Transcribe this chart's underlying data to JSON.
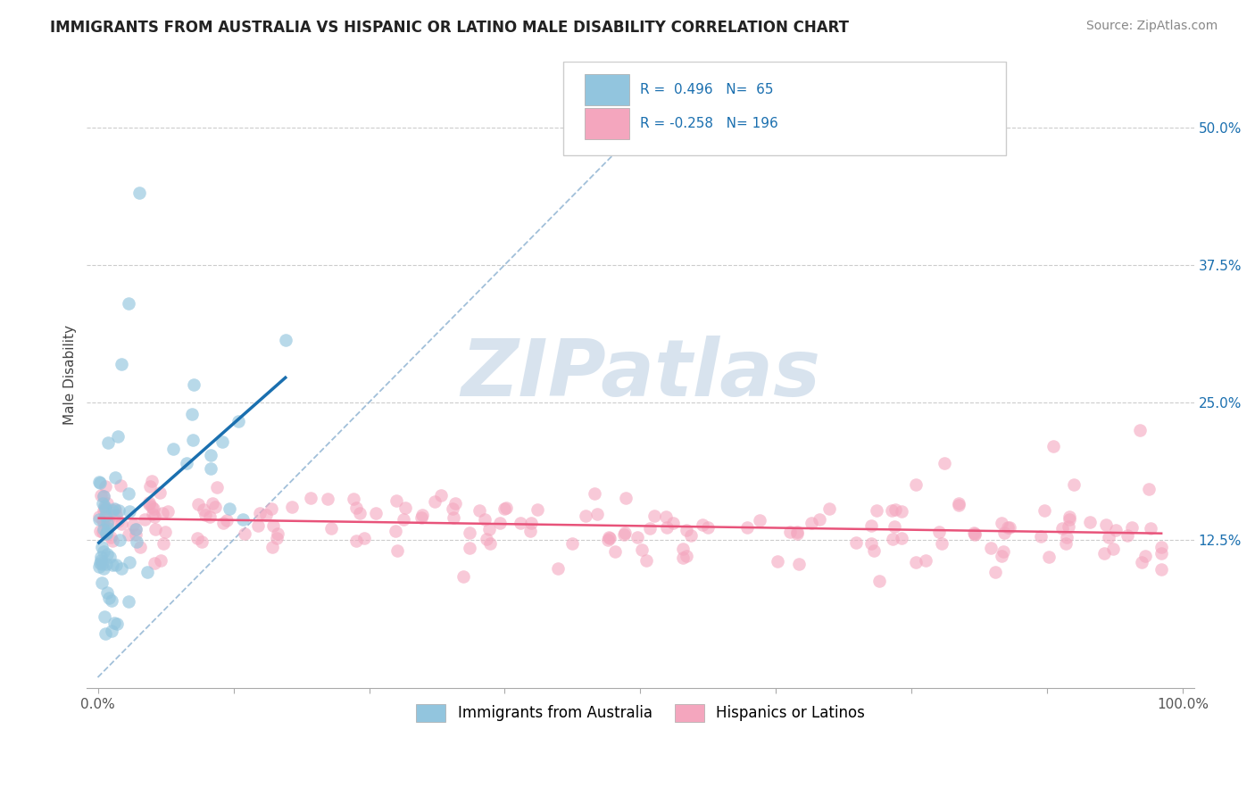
{
  "title": "IMMIGRANTS FROM AUSTRALIA VS HISPANIC OR LATINO MALE DISABILITY CORRELATION CHART",
  "source": "Source: ZipAtlas.com",
  "ylabel": "Male Disability",
  "y_ticks": [
    "12.5%",
    "25.0%",
    "37.5%",
    "50.0%"
  ],
  "y_tick_vals": [
    0.125,
    0.25,
    0.375,
    0.5
  ],
  "xlim": [
    -0.01,
    1.01
  ],
  "ylim": [
    -0.01,
    0.56
  ],
  "legend_label_blue": "Immigrants from Australia",
  "legend_label_pink": "Hispanics or Latinos",
  "r_blue": "0.496",
  "n_blue": "65",
  "r_pink": "-0.258",
  "n_pink": "196",
  "blue_color": "#92c5de",
  "pink_color": "#f4a6be",
  "blue_line_color": "#1a6faf",
  "pink_line_color": "#e8537a",
  "diag_color": "#8ab0d0",
  "watermark_color": "#c8d8e8",
  "title_fontsize": 12,
  "source_fontsize": 10,
  "tick_fontsize": 11
}
